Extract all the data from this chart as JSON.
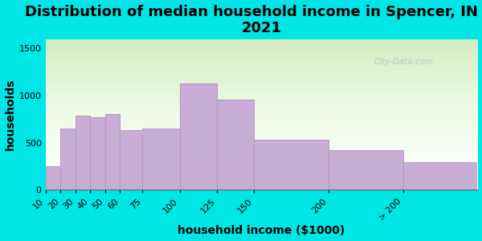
{
  "title": "Distribution of median household income in Spencer, IN in\n2021",
  "xlabel": "household income ($1000)",
  "ylabel": "households",
  "bar_edges": [
    10,
    20,
    30,
    40,
    50,
    60,
    75,
    100,
    125,
    150,
    200,
    250,
    300
  ],
  "tick_labels": [
    "10",
    "20",
    "30",
    "40",
    "50",
    "60",
    "75",
    "100",
    "125",
    "150",
    "200",
    "> 200"
  ],
  "values": [
    250,
    650,
    790,
    770,
    800,
    630,
    650,
    1130,
    960,
    530,
    420,
    290
  ],
  "bar_color": "#c8aed4",
  "bar_edge_color": "#b898cc",
  "background_outer": "#00e5e5",
  "yticks": [
    0,
    500,
    1000,
    1500
  ],
  "ylim": [
    0,
    1600
  ],
  "xlim_left": 10,
  "xlim_right": 300,
  "title_fontsize": 13,
  "label_fontsize": 10,
  "tick_fontsize": 8,
  "watermark": "City-Data.com"
}
